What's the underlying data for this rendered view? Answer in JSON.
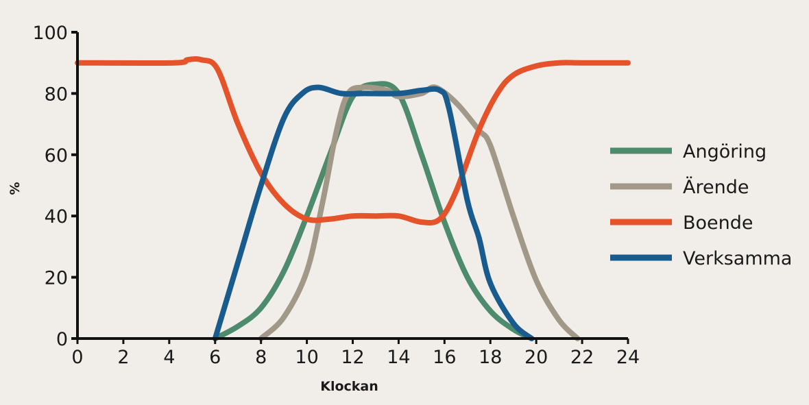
{
  "chart_data": {
    "type": "line",
    "xlabel": "Klockan",
    "ylabel": "%",
    "xlim": [
      0,
      24
    ],
    "ylim": [
      0,
      100
    ],
    "xticks": [
      0,
      2,
      4,
      6,
      8,
      10,
      12,
      14,
      16,
      18,
      20,
      22,
      24
    ],
    "yticks": [
      0,
      20,
      40,
      60,
      80,
      100
    ],
    "grid": false,
    "legend": "right",
    "series": [
      {
        "name": "Angöring",
        "color": "#4e8b6c",
        "points": [
          [
            6,
            0
          ],
          [
            7,
            4
          ],
          [
            8,
            10
          ],
          [
            9,
            22
          ],
          [
            10,
            40
          ],
          [
            11,
            60
          ],
          [
            12,
            79
          ],
          [
            13,
            83
          ],
          [
            14,
            80
          ],
          [
            15,
            60
          ],
          [
            16,
            38
          ],
          [
            17,
            20
          ],
          [
            18,
            9
          ],
          [
            19,
            3
          ],
          [
            19.8,
            0
          ]
        ]
      },
      {
        "name": "Ärende",
        "color": "#a19888",
        "points": [
          [
            8,
            0
          ],
          [
            9,
            7
          ],
          [
            10,
            22
          ],
          [
            10.7,
            45
          ],
          [
            11.3,
            68
          ],
          [
            11.8,
            80
          ],
          [
            12.5,
            82
          ],
          [
            13.5,
            81
          ],
          [
            14,
            79
          ],
          [
            15,
            80
          ],
          [
            15.6,
            82
          ],
          [
            16.5,
            77
          ],
          [
            17.5,
            68
          ],
          [
            18,
            63
          ],
          [
            19,
            40
          ],
          [
            20,
            19
          ],
          [
            21,
            6
          ],
          [
            21.8,
            0
          ]
        ]
      },
      {
        "name": "Boende",
        "color": "#e5532a",
        "points": [
          [
            0,
            90
          ],
          [
            4.2,
            90
          ],
          [
            4.8,
            91
          ],
          [
            5.4,
            91
          ],
          [
            6.1,
            88
          ],
          [
            7,
            70
          ],
          [
            8,
            54
          ],
          [
            9,
            44
          ],
          [
            10,
            39
          ],
          [
            11,
            39
          ],
          [
            12,
            40
          ],
          [
            13,
            40
          ],
          [
            14,
            40
          ],
          [
            15,
            38
          ],
          [
            15.8,
            39
          ],
          [
            16.5,
            48
          ],
          [
            17.5,
            68
          ],
          [
            18.3,
            80
          ],
          [
            19,
            86
          ],
          [
            20,
            89
          ],
          [
            21,
            90
          ],
          [
            22,
            90
          ],
          [
            24,
            90
          ]
        ]
      },
      {
        "name": "Verksamma",
        "color": "#1a5b8e",
        "points": [
          [
            6,
            0
          ],
          [
            7,
            25
          ],
          [
            8,
            50
          ],
          [
            9,
            72
          ],
          [
            9.8,
            80
          ],
          [
            10.5,
            82
          ],
          [
            11.5,
            80
          ],
          [
            12.5,
            80
          ],
          [
            14,
            80
          ],
          [
            15,
            81
          ],
          [
            15.8,
            81
          ],
          [
            16.2,
            75
          ],
          [
            17,
            45
          ],
          [
            17.5,
            33
          ],
          [
            18,
            18
          ],
          [
            19,
            5
          ],
          [
            19.8,
            0
          ]
        ]
      }
    ]
  }
}
